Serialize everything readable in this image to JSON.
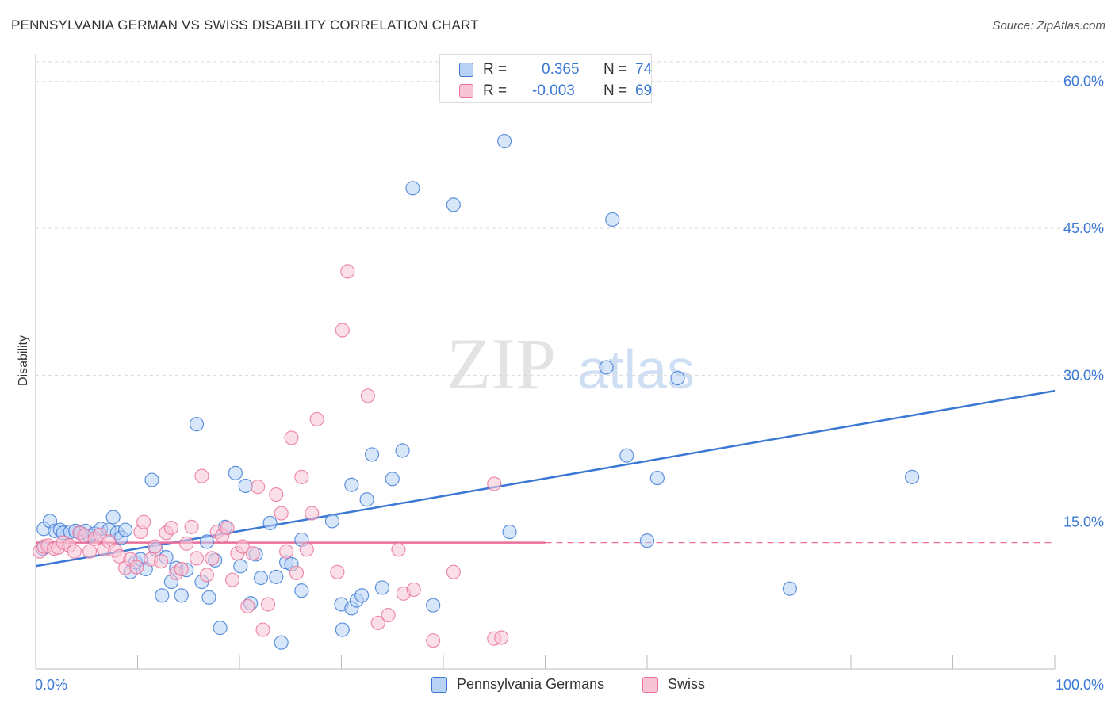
{
  "title": "PENNSYLVANIA GERMAN VS SWISS DISABILITY CORRELATION CHART",
  "source": "Source: ZipAtlas.com",
  "watermark": {
    "zip": "ZIP",
    "atlas": "atlas"
  },
  "colors": {
    "blue": "#3a78d4",
    "blue_fill": "#b8d2f5",
    "pink": "#e8709a",
    "pink_fill": "#f7c4d5",
    "tick_label": "#3a78d4"
  },
  "legend_top": {
    "rows": [
      {
        "r_label": "R =",
        "r_value": "0.365",
        "n_label": "N =",
        "n_value": "74"
      },
      {
        "r_label": "R =",
        "r_value": "-0.003",
        "n_label": "N =",
        "n_value": "69"
      }
    ]
  },
  "chart_data": {
    "type": "scatter",
    "title": "PENNSYLVANIA GERMAN VS SWISS DISABILITY CORRELATION CHART",
    "xlabel": "",
    "ylabel": "Disability",
    "xlim": [
      0,
      100
    ],
    "ylim": [
      0,
      62
    ],
    "x_tick_labels": [
      "0.0%",
      "100.0%"
    ],
    "y_ticks": [
      15,
      30,
      45,
      60
    ],
    "y_tick_labels": [
      "15.0%",
      "30.0%",
      "45.0%",
      "60.0%"
    ],
    "grid": true,
    "legend_position": "top-center",
    "series": [
      {
        "name": "Pennsylvania Germans",
        "color": "#3a78d4",
        "fill": "#b8d2f5",
        "trend": {
          "x": [
            0,
            100
          ],
          "y": [
            10.5,
            28.4
          ],
          "dashed_from": null
        },
        "points": [
          [
            0.7,
            12.3
          ],
          [
            0.8,
            14.3
          ],
          [
            1.4,
            15.1
          ],
          [
            1.9,
            14.1
          ],
          [
            2.4,
            14.2
          ],
          [
            2.7,
            13.9
          ],
          [
            3.4,
            14.0
          ],
          [
            3.9,
            14.1
          ],
          [
            4.4,
            13.9
          ],
          [
            4.9,
            14.1
          ],
          [
            5.3,
            13.6
          ],
          [
            5.8,
            13.8
          ],
          [
            6.4,
            14.3
          ],
          [
            7.2,
            14.2
          ],
          [
            7.6,
            15.5
          ],
          [
            8.0,
            13.9
          ],
          [
            8.4,
            13.4
          ],
          [
            8.8,
            14.2
          ],
          [
            9.3,
            9.9
          ],
          [
            9.8,
            10.9
          ],
          [
            10.3,
            11.2
          ],
          [
            10.8,
            10.2
          ],
          [
            11.4,
            19.3
          ],
          [
            11.8,
            12.2
          ],
          [
            12.4,
            7.5
          ],
          [
            12.8,
            11.4
          ],
          [
            13.3,
            8.9
          ],
          [
            13.8,
            10.3
          ],
          [
            14.3,
            7.5
          ],
          [
            14.8,
            10.1
          ],
          [
            15.8,
            25.0
          ],
          [
            16.3,
            8.9
          ],
          [
            16.8,
            13.0
          ],
          [
            17.0,
            7.3
          ],
          [
            17.6,
            11.1
          ],
          [
            18.1,
            4.2
          ],
          [
            18.6,
            14.5
          ],
          [
            19.6,
            20.0
          ],
          [
            20.1,
            10.5
          ],
          [
            20.6,
            18.7
          ],
          [
            21.1,
            6.7
          ],
          [
            21.6,
            11.7
          ],
          [
            22.1,
            9.3
          ],
          [
            23.0,
            14.9
          ],
          [
            23.6,
            9.4
          ],
          [
            24.1,
            2.7
          ],
          [
            24.6,
            10.9
          ],
          [
            25.1,
            10.7
          ],
          [
            26.1,
            13.2
          ],
          [
            26.1,
            8.0
          ],
          [
            29.1,
            15.1
          ],
          [
            30.0,
            6.6
          ],
          [
            30.1,
            4.0
          ],
          [
            31.0,
            6.2
          ],
          [
            31.5,
            7.0
          ],
          [
            31.0,
            18.8
          ],
          [
            32.0,
            7.5
          ],
          [
            32.5,
            17.3
          ],
          [
            33.0,
            21.9
          ],
          [
            34.0,
            8.3
          ],
          [
            35.0,
            19.4
          ],
          [
            36.0,
            22.3
          ],
          [
            37.0,
            49.1
          ],
          [
            39.0,
            6.5
          ],
          [
            41.0,
            47.4
          ],
          [
            46.0,
            53.9
          ],
          [
            46.5,
            14.0
          ],
          [
            56.0,
            30.8
          ],
          [
            56.6,
            45.9
          ],
          [
            58.0,
            21.8
          ],
          [
            60.0,
            13.1
          ],
          [
            61.0,
            19.5
          ],
          [
            63.0,
            29.7
          ],
          [
            74.0,
            8.2
          ],
          [
            86.0,
            19.6
          ]
        ]
      },
      {
        "name": "Swiss",
        "color": "#e8709a",
        "fill": "#f7c4d5",
        "trend": {
          "x": [
            0,
            100
          ],
          "y": [
            12.9,
            12.9
          ],
          "solid_until": 50
        },
        "points": [
          [
            0.4,
            12.0
          ],
          [
            0.8,
            12.5
          ],
          [
            1.2,
            12.6
          ],
          [
            1.8,
            12.3
          ],
          [
            2.2,
            12.4
          ],
          [
            2.7,
            12.9
          ],
          [
            3.3,
            12.6
          ],
          [
            3.8,
            12.0
          ],
          [
            4.3,
            13.9
          ],
          [
            4.8,
            13.6
          ],
          [
            5.3,
            12.0
          ],
          [
            5.8,
            13.3
          ],
          [
            6.3,
            13.7
          ],
          [
            6.7,
            12.2
          ],
          [
            7.2,
            13.0
          ],
          [
            7.8,
            12.1
          ],
          [
            8.2,
            11.5
          ],
          [
            8.8,
            10.3
          ],
          [
            9.3,
            11.2
          ],
          [
            9.9,
            10.4
          ],
          [
            10.3,
            14.0
          ],
          [
            10.6,
            15.0
          ],
          [
            11.3,
            11.2
          ],
          [
            11.7,
            12.5
          ],
          [
            12.3,
            11.0
          ],
          [
            12.8,
            13.9
          ],
          [
            13.3,
            14.4
          ],
          [
            13.8,
            9.8
          ],
          [
            14.3,
            10.2
          ],
          [
            14.8,
            12.8
          ],
          [
            15.3,
            14.5
          ],
          [
            15.8,
            11.3
          ],
          [
            16.3,
            19.7
          ],
          [
            16.8,
            9.6
          ],
          [
            17.3,
            11.3
          ],
          [
            17.8,
            14.0
          ],
          [
            18.3,
            13.6
          ],
          [
            18.8,
            14.4
          ],
          [
            19.3,
            9.1
          ],
          [
            19.8,
            11.8
          ],
          [
            20.3,
            12.5
          ],
          [
            20.8,
            6.4
          ],
          [
            21.3,
            11.8
          ],
          [
            21.8,
            18.6
          ],
          [
            22.3,
            4.0
          ],
          [
            22.8,
            6.6
          ],
          [
            23.6,
            17.8
          ],
          [
            24.1,
            15.9
          ],
          [
            24.6,
            12.0
          ],
          [
            25.1,
            23.6
          ],
          [
            25.6,
            9.8
          ],
          [
            26.1,
            19.6
          ],
          [
            26.6,
            12.2
          ],
          [
            27.1,
            15.9
          ],
          [
            27.6,
            25.5
          ],
          [
            29.6,
            9.9
          ],
          [
            30.1,
            34.6
          ],
          [
            30.6,
            40.6
          ],
          [
            32.6,
            27.9
          ],
          [
            33.6,
            4.7
          ],
          [
            34.6,
            5.5
          ],
          [
            35.6,
            12.2
          ],
          [
            36.1,
            7.7
          ],
          [
            37.1,
            8.1
          ],
          [
            39.0,
            2.9
          ],
          [
            41.0,
            9.9
          ],
          [
            45.0,
            3.1
          ],
          [
            45.7,
            3.2
          ],
          [
            45.0,
            18.9
          ]
        ]
      }
    ]
  }
}
